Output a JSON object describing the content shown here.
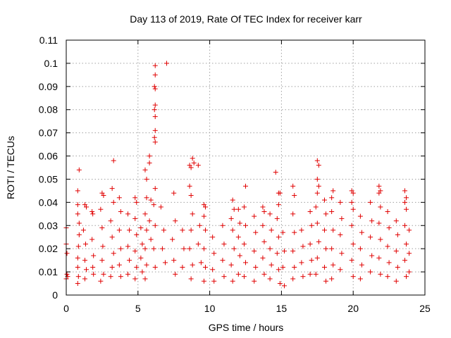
{
  "chart_data": {
    "type": "scatter",
    "title": "Day 113 of 2019, Rate Of TEC Index for receiver karr",
    "xlabel": "GPS time / hours",
    "ylabel": "ROTI / TECUs",
    "xlim": [
      0,
      25
    ],
    "ylim": [
      0,
      0.11
    ],
    "xticks": [
      0,
      5,
      10,
      15,
      20,
      25
    ],
    "xtick_labels": [
      "0",
      "5",
      "10",
      "15",
      "20",
      "25"
    ],
    "yticks": [
      0,
      0.01,
      0.02,
      0.03,
      0.04,
      0.05,
      0.06,
      0.07,
      0.08,
      0.09,
      0.1,
      0.11
    ],
    "ytick_labels": [
      "0",
      "0.01",
      "0.02",
      "0.03",
      "0.04",
      "0.05",
      "0.06",
      "0.07",
      "0.08",
      "0.09",
      "0.1",
      "0.11"
    ],
    "grid": true,
    "marker": "+",
    "marker_color": "#e00000",
    "series": [
      {
        "name": "ROTI",
        "points": [
          [
            0.0,
            0.029
          ],
          [
            0.0,
            0.022
          ],
          [
            0.05,
            0.018
          ],
          [
            0.05,
            0.009
          ],
          [
            0.0,
            0.007
          ],
          [
            0.1,
            0.008
          ],
          [
            0.9,
            0.054
          ],
          [
            0.8,
            0.045
          ],
          [
            0.8,
            0.039
          ],
          [
            0.8,
            0.035
          ],
          [
            0.9,
            0.031
          ],
          [
            0.9,
            0.026
          ],
          [
            0.85,
            0.021
          ],
          [
            0.8,
            0.016
          ],
          [
            0.8,
            0.012
          ],
          [
            0.85,
            0.008
          ],
          [
            0.8,
            0.005
          ],
          [
            1.3,
            0.039
          ],
          [
            1.4,
            0.038
          ],
          [
            1.2,
            0.028
          ],
          [
            1.35,
            0.022
          ],
          [
            1.3,
            0.015
          ],
          [
            1.4,
            0.011
          ],
          [
            1.3,
            0.007
          ],
          [
            1.8,
            0.036
          ],
          [
            1.85,
            0.035
          ],
          [
            1.8,
            0.024
          ],
          [
            1.9,
            0.017
          ],
          [
            1.85,
            0.012
          ],
          [
            1.9,
            0.009
          ],
          [
            2.5,
            0.044
          ],
          [
            2.6,
            0.043
          ],
          [
            2.4,
            0.037
          ],
          [
            2.5,
            0.029
          ],
          [
            2.55,
            0.021
          ],
          [
            2.5,
            0.015
          ],
          [
            2.6,
            0.009
          ],
          [
            2.4,
            0.006
          ],
          [
            3.3,
            0.058
          ],
          [
            3.2,
            0.046
          ],
          [
            3.3,
            0.04
          ],
          [
            3.1,
            0.032
          ],
          [
            3.2,
            0.025
          ],
          [
            3.3,
            0.018
          ],
          [
            3.2,
            0.012
          ],
          [
            3.1,
            0.008
          ],
          [
            3.7,
            0.042
          ],
          [
            3.8,
            0.036
          ],
          [
            3.7,
            0.028
          ],
          [
            3.8,
            0.02
          ],
          [
            3.7,
            0.013
          ],
          [
            3.8,
            0.008
          ],
          [
            4.3,
            0.035
          ],
          [
            4.4,
            0.028
          ],
          [
            4.3,
            0.021
          ],
          [
            4.4,
            0.015
          ],
          [
            4.3,
            0.009
          ],
          [
            4.8,
            0.042
          ],
          [
            4.9,
            0.04
          ],
          [
            4.8,
            0.033
          ],
          [
            4.9,
            0.026
          ],
          [
            4.8,
            0.019
          ],
          [
            4.9,
            0.012
          ],
          [
            4.8,
            0.007
          ],
          [
            5.2,
            0.029
          ],
          [
            5.3,
            0.022
          ],
          [
            5.2,
            0.016
          ],
          [
            5.3,
            0.01
          ],
          [
            5.6,
            0.05
          ],
          [
            5.5,
            0.054
          ],
          [
            5.6,
            0.042
          ],
          [
            5.5,
            0.035
          ],
          [
            5.6,
            0.028
          ],
          [
            5.5,
            0.02
          ],
          [
            5.6,
            0.013
          ],
          [
            5.5,
            0.007
          ],
          [
            5.8,
            0.06
          ],
          [
            5.8,
            0.057
          ],
          [
            5.9,
            0.041
          ],
          [
            5.8,
            0.032
          ],
          [
            5.9,
            0.024
          ],
          [
            6.2,
            0.099
          ],
          [
            6.2,
            0.095
          ],
          [
            6.15,
            0.09
          ],
          [
            6.2,
            0.089
          ],
          [
            6.2,
            0.082
          ],
          [
            6.15,
            0.08
          ],
          [
            6.2,
            0.077
          ],
          [
            6.2,
            0.071
          ],
          [
            6.15,
            0.068
          ],
          [
            6.2,
            0.066
          ],
          [
            6.2,
            0.046
          ],
          [
            6.1,
            0.039
          ],
          [
            6.2,
            0.03
          ],
          [
            6.1,
            0.02
          ],
          [
            6.2,
            0.012
          ],
          [
            7.0,
            0.1
          ],
          [
            6.6,
            0.038
          ],
          [
            6.8,
            0.028
          ],
          [
            6.7,
            0.02
          ],
          [
            6.9,
            0.014
          ],
          [
            7.5,
            0.044
          ],
          [
            7.6,
            0.032
          ],
          [
            7.4,
            0.024
          ],
          [
            7.5,
            0.015
          ],
          [
            7.6,
            0.009
          ],
          [
            8.1,
            0.028
          ],
          [
            8.2,
            0.02
          ],
          [
            8.1,
            0.012
          ],
          [
            8.6,
            0.056
          ],
          [
            8.8,
            0.059
          ],
          [
            8.9,
            0.057
          ],
          [
            8.7,
            0.055
          ],
          [
            8.6,
            0.047
          ],
          [
            8.7,
            0.043
          ],
          [
            8.8,
            0.035
          ],
          [
            8.7,
            0.028
          ],
          [
            8.6,
            0.02
          ],
          [
            8.8,
            0.013
          ],
          [
            8.7,
            0.007
          ],
          [
            9.2,
            0.056
          ],
          [
            9.3,
            0.03
          ],
          [
            9.2,
            0.022
          ],
          [
            9.4,
            0.014
          ],
          [
            9.6,
            0.039
          ],
          [
            9.7,
            0.038
          ],
          [
            9.6,
            0.034
          ],
          [
            9.7,
            0.028
          ],
          [
            9.6,
            0.02
          ],
          [
            9.7,
            0.012
          ],
          [
            9.6,
            0.006
          ],
          [
            10.2,
            0.025
          ],
          [
            10.3,
            0.018
          ],
          [
            10.2,
            0.011
          ],
          [
            10.3,
            0.006
          ],
          [
            10.9,
            0.03
          ],
          [
            11.0,
            0.022
          ],
          [
            10.9,
            0.015
          ],
          [
            11.0,
            0.008
          ],
          [
            11.6,
            0.041
          ],
          [
            11.7,
            0.037
          ],
          [
            11.5,
            0.033
          ],
          [
            11.6,
            0.028
          ],
          [
            11.7,
            0.02
          ],
          [
            11.5,
            0.013
          ],
          [
            11.6,
            0.006
          ],
          [
            12.0,
            0.037
          ],
          [
            12.1,
            0.031
          ],
          [
            12.0,
            0.025
          ],
          [
            12.1,
            0.017
          ],
          [
            12.0,
            0.009
          ],
          [
            12.5,
            0.047
          ],
          [
            12.4,
            0.038
          ],
          [
            12.5,
            0.03
          ],
          [
            12.4,
            0.022
          ],
          [
            12.5,
            0.014
          ],
          [
            12.4,
            0.008
          ],
          [
            13.1,
            0.034
          ],
          [
            13.2,
            0.027
          ],
          [
            13.1,
            0.019
          ],
          [
            13.2,
            0.012
          ],
          [
            13.1,
            0.006
          ],
          [
            13.7,
            0.038
          ],
          [
            13.8,
            0.036
          ],
          [
            13.7,
            0.03
          ],
          [
            13.8,
            0.023
          ],
          [
            13.7,
            0.016
          ],
          [
            13.8,
            0.009
          ],
          [
            14.2,
            0.035
          ],
          [
            14.3,
            0.028
          ],
          [
            14.2,
            0.02
          ],
          [
            14.3,
            0.013
          ],
          [
            14.2,
            0.007
          ],
          [
            14.6,
            0.053
          ],
          [
            14.8,
            0.044
          ],
          [
            14.9,
            0.044
          ],
          [
            14.8,
            0.039
          ],
          [
            14.7,
            0.033
          ],
          [
            14.8,
            0.025
          ],
          [
            14.7,
            0.018
          ],
          [
            14.8,
            0.011
          ],
          [
            14.9,
            0.005
          ],
          [
            15.1,
            0.027
          ],
          [
            15.2,
            0.019
          ],
          [
            15.1,
            0.012
          ],
          [
            15.2,
            0.004
          ],
          [
            15.8,
            0.047
          ],
          [
            15.9,
            0.043
          ],
          [
            15.8,
            0.035
          ],
          [
            15.9,
            0.027
          ],
          [
            15.8,
            0.019
          ],
          [
            15.9,
            0.012
          ],
          [
            15.8,
            0.007
          ],
          [
            16.4,
            0.028
          ],
          [
            16.5,
            0.021
          ],
          [
            16.4,
            0.014
          ],
          [
            16.5,
            0.008
          ],
          [
            17.0,
            0.036
          ],
          [
            17.1,
            0.03
          ],
          [
            17.0,
            0.022
          ],
          [
            17.1,
            0.015
          ],
          [
            17.0,
            0.009
          ],
          [
            17.5,
            0.058
          ],
          [
            17.6,
            0.056
          ],
          [
            17.5,
            0.05
          ],
          [
            17.6,
            0.047
          ],
          [
            17.5,
            0.044
          ],
          [
            17.4,
            0.038
          ],
          [
            17.5,
            0.031
          ],
          [
            17.6,
            0.023
          ],
          [
            17.5,
            0.016
          ],
          [
            17.4,
            0.009
          ],
          [
            18.0,
            0.041
          ],
          [
            18.1,
            0.035
          ],
          [
            18.0,
            0.028
          ],
          [
            18.1,
            0.02
          ],
          [
            18.0,
            0.012
          ],
          [
            18.1,
            0.006
          ],
          [
            18.5,
            0.042
          ],
          [
            18.6,
            0.045
          ],
          [
            18.5,
            0.036
          ],
          [
            18.6,
            0.028
          ],
          [
            18.5,
            0.02
          ],
          [
            18.6,
            0.013
          ],
          [
            18.5,
            0.007
          ],
          [
            19.1,
            0.04
          ],
          [
            19.2,
            0.033
          ],
          [
            19.1,
            0.026
          ],
          [
            19.2,
            0.018
          ],
          [
            19.1,
            0.011
          ],
          [
            19.9,
            0.045
          ],
          [
            20.0,
            0.044
          ],
          [
            19.9,
            0.04
          ],
          [
            20.0,
            0.037
          ],
          [
            19.9,
            0.03
          ],
          [
            20.0,
            0.022
          ],
          [
            19.9,
            0.015
          ],
          [
            20.0,
            0.008
          ],
          [
            20.5,
            0.034
          ],
          [
            20.6,
            0.027
          ],
          [
            20.5,
            0.02
          ],
          [
            20.6,
            0.013
          ],
          [
            20.5,
            0.007
          ],
          [
            21.2,
            0.04
          ],
          [
            21.3,
            0.032
          ],
          [
            21.2,
            0.025
          ],
          [
            21.3,
            0.017
          ],
          [
            21.2,
            0.01
          ],
          [
            21.8,
            0.047
          ],
          [
            21.9,
            0.045
          ],
          [
            21.8,
            0.044
          ],
          [
            21.9,
            0.038
          ],
          [
            21.8,
            0.031
          ],
          [
            21.9,
            0.024
          ],
          [
            21.8,
            0.016
          ],
          [
            21.9,
            0.009
          ],
          [
            22.4,
            0.036
          ],
          [
            22.5,
            0.029
          ],
          [
            22.4,
            0.021
          ],
          [
            22.5,
            0.014
          ],
          [
            22.4,
            0.008
          ],
          [
            23.0,
            0.032
          ],
          [
            23.1,
            0.026
          ],
          [
            23.0,
            0.019
          ],
          [
            23.1,
            0.012
          ],
          [
            23.0,
            0.006
          ],
          [
            23.6,
            0.045
          ],
          [
            23.7,
            0.042
          ],
          [
            23.6,
            0.04
          ],
          [
            23.7,
            0.037
          ],
          [
            23.6,
            0.03
          ],
          [
            23.7,
            0.022
          ],
          [
            23.6,
            0.015
          ],
          [
            23.7,
            0.008
          ],
          [
            23.9,
            0.028
          ],
          [
            23.9,
            0.018
          ],
          [
            23.9,
            0.01
          ]
        ]
      }
    ]
  }
}
